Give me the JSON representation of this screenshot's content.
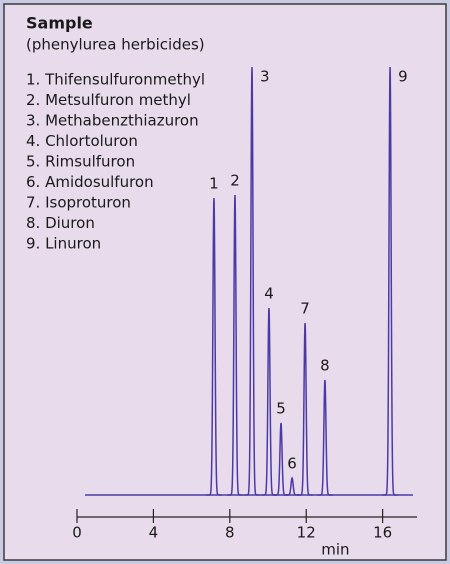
{
  "chart_data": {
    "type": "chromatogram",
    "title": "Sample",
    "subtitle": "(phenylurea herbicides)",
    "legend": [
      "1. Thifensulfuronmethyl",
      "2. Metsulfuron methyl",
      "3. Methabenzthiazuron",
      "4. Chlortoluron",
      "5. Rimsulfuron",
      "6. Amidosulfuron",
      "7. Isoproturon",
      "8. Diuron",
      "9. Linuron"
    ],
    "peaks": {
      "labels": [
        "1",
        "2",
        "3",
        "4",
        "5",
        "6",
        "7",
        "8",
        "9"
      ],
      "x": [
        7.17,
        8.27,
        9.16,
        10.05,
        10.68,
        11.26,
        11.94,
        12.98,
        16.39
      ],
      "values": [
        297,
        300,
        428,
        187,
        72,
        17,
        172,
        115,
        428
      ]
    },
    "color": "#4b3aa6",
    "xlabel": "min",
    "xlim": [
      0,
      17.8
    ],
    "xticks": [
      0,
      4,
      8,
      12,
      16
    ],
    "ylim": [
      0,
      440
    ]
  }
}
